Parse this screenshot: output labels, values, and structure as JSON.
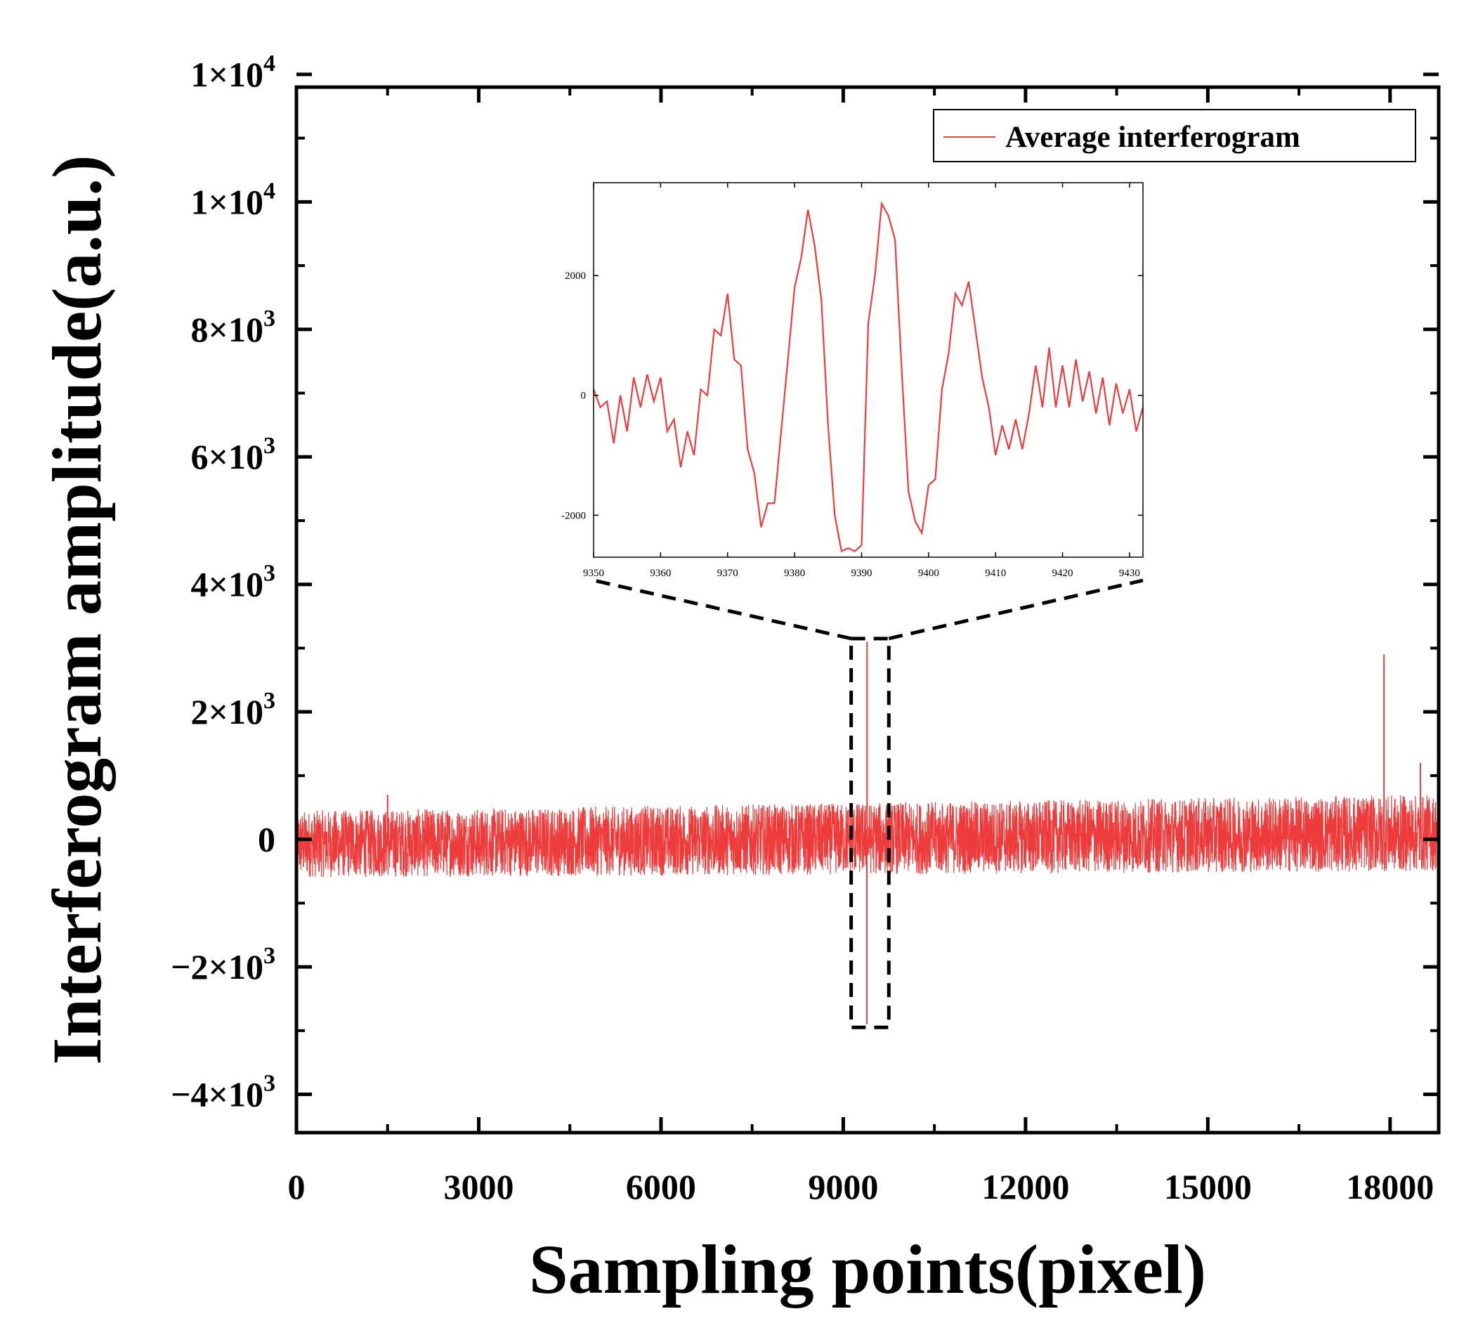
{
  "chart_data": [
    {
      "id": "main",
      "type": "line",
      "title": "",
      "xlabel": "Sampling points(pixel)",
      "ylabel": "Interferogram amplitude(a.u.)",
      "xlim": [
        0,
        18800
      ],
      "ylim": [
        -4600,
        11800
      ],
      "xticks": [
        0,
        3000,
        6000,
        9000,
        12000,
        15000,
        18000
      ],
      "xtick_labels": [
        "0",
        "3000",
        "6000",
        "9000",
        "12000",
        "15000",
        "18000"
      ],
      "yticks": [
        -4000,
        -2000,
        0,
        2000,
        4000,
        6000,
        8000,
        10000,
        12000
      ],
      "ytick_labels": [
        {
          "base": "−4×10",
          "exp": "3"
        },
        {
          "base": "−2×10",
          "exp": "3"
        },
        {
          "base": "0",
          "exp": ""
        },
        {
          "base": "2×10",
          "exp": "3"
        },
        {
          "base": "4×10",
          "exp": "3"
        },
        {
          "base": "6×10",
          "exp": "3"
        },
        {
          "base": "8×10",
          "exp": "3"
        },
        {
          "base": "1×10",
          "exp": "4"
        },
        {
          "base": "1×10",
          "exp": "4"
        }
      ],
      "legend": {
        "label": "Average interferogram",
        "position": "top-right"
      },
      "series": [
        {
          "name": "Average interferogram",
          "color": "#ee3b3b",
          "description": "noise band around zero spanning 0-18800 pixels",
          "envelope_start": [
            -600,
            450
          ],
          "envelope_end": [
            -500,
            700
          ],
          "spikes": [
            {
              "x": 9392,
              "y": 3100
            },
            {
              "x": 9388,
              "y": -2900
            },
            {
              "x": 17900,
              "y": 2900
            },
            {
              "x": 18500,
              "y": 1200
            },
            {
              "x": 1500,
              "y": 700
            }
          ]
        }
      ],
      "zoom_box": {
        "x_range": [
          9130,
          9750
        ],
        "y_range": [
          -2950,
          3150
        ]
      }
    },
    {
      "id": "inset",
      "type": "line",
      "title": "",
      "xlabel": "",
      "ylabel": "",
      "xlim": [
        9350,
        9432
      ],
      "ylim": [
        -2700,
        3550
      ],
      "xticks": [
        9350,
        9360,
        9370,
        9380,
        9390,
        9400,
        9410,
        9420,
        9430
      ],
      "xtick_labels": [
        "9350",
        "9360",
        "9370",
        "9380",
        "9390",
        "9400",
        "9410",
        "9420",
        "9430"
      ],
      "yticks": [
        -2000,
        0,
        2000
      ],
      "ytick_labels": [
        "-2000",
        "0",
        "2000"
      ],
      "series": [
        {
          "name": "Average interferogram (zoom)",
          "color": "#ee3b3b",
          "x": [
            9350,
            9351,
            9352,
            9353,
            9354,
            9355,
            9356,
            9357,
            9358,
            9359,
            9360,
            9361,
            9362,
            9363,
            9364,
            9365,
            9366,
            9367,
            9368,
            9369,
            9370,
            9371,
            9372,
            9373,
            9374,
            9375,
            9376,
            9377,
            9378,
            9379,
            9380,
            9381,
            9382,
            9383,
            9384,
            9385,
            9386,
            9387,
            9388,
            9389,
            9390,
            9391,
            9392,
            9393,
            9394,
            9395,
            9396,
            9397,
            9398,
            9399,
            9400,
            9401,
            9402,
            9403,
            9404,
            9405,
            9406,
            9407,
            9408,
            9409,
            9410,
            9411,
            9412,
            9413,
            9414,
            9415,
            9416,
            9417,
            9418,
            9419,
            9420,
            9421,
            9422,
            9423,
            9424,
            9425,
            9426,
            9427,
            9428,
            9429,
            9430,
            9431,
            9432
          ],
          "y": [
            100,
            -200,
            -100,
            -800,
            0,
            -600,
            300,
            -200,
            350,
            -100,
            300,
            -600,
            -400,
            -1200,
            -600,
            -1000,
            100,
            0,
            1100,
            1000,
            1700,
            600,
            500,
            -900,
            -1300,
            -2200,
            -1800,
            -1800,
            -600,
            600,
            1800,
            2300,
            3100,
            2500,
            1600,
            -500,
            -2000,
            -2600,
            -2550,
            -2600,
            -2500,
            1200,
            2000,
            3200,
            3000,
            2600,
            400,
            -1600,
            -2100,
            -2300,
            -1500,
            -1400,
            100,
            700,
            1700,
            1500,
            1900,
            1100,
            300,
            -200,
            -1000,
            -500,
            -900,
            -400,
            -900,
            -300,
            500,
            -200,
            800,
            -200,
            500,
            -200,
            600,
            -100,
            400,
            -300,
            300,
            -500,
            200,
            -300,
            100,
            -600,
            -200
          ]
        }
      ]
    }
  ]
}
